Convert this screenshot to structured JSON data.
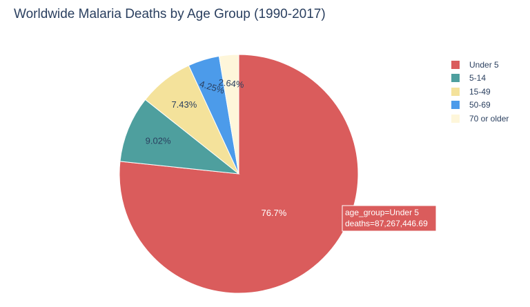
{
  "chart_data": {
    "type": "pie",
    "title": "Worldwide Malaria Deaths by Age Group (1990-2017)",
    "labels": [
      "Under 5",
      "5-14",
      "15-49",
      "50-69",
      "70 or older"
    ],
    "values": [
      76.7,
      9.02,
      7.43,
      4.25,
      2.64
    ],
    "value_labels": [
      "76.7%",
      "9.02%",
      "7.43%",
      "4.25%",
      "2.64%"
    ],
    "colors": [
      "#DA5C5C",
      "#4E9F9E",
      "#F4E29B",
      "#4C9BEA",
      "#FEF6DA"
    ],
    "label_colors": [
      "#ffffff",
      "#2a3f5f",
      "#2a3f5f",
      "#2a3f5f",
      "#2a3f5f"
    ],
    "direction": "clockwise",
    "legend_position": "right",
    "tooltip": {
      "line1": "age_group=Under 5",
      "line2": "deaths=87,267,446.69"
    }
  }
}
